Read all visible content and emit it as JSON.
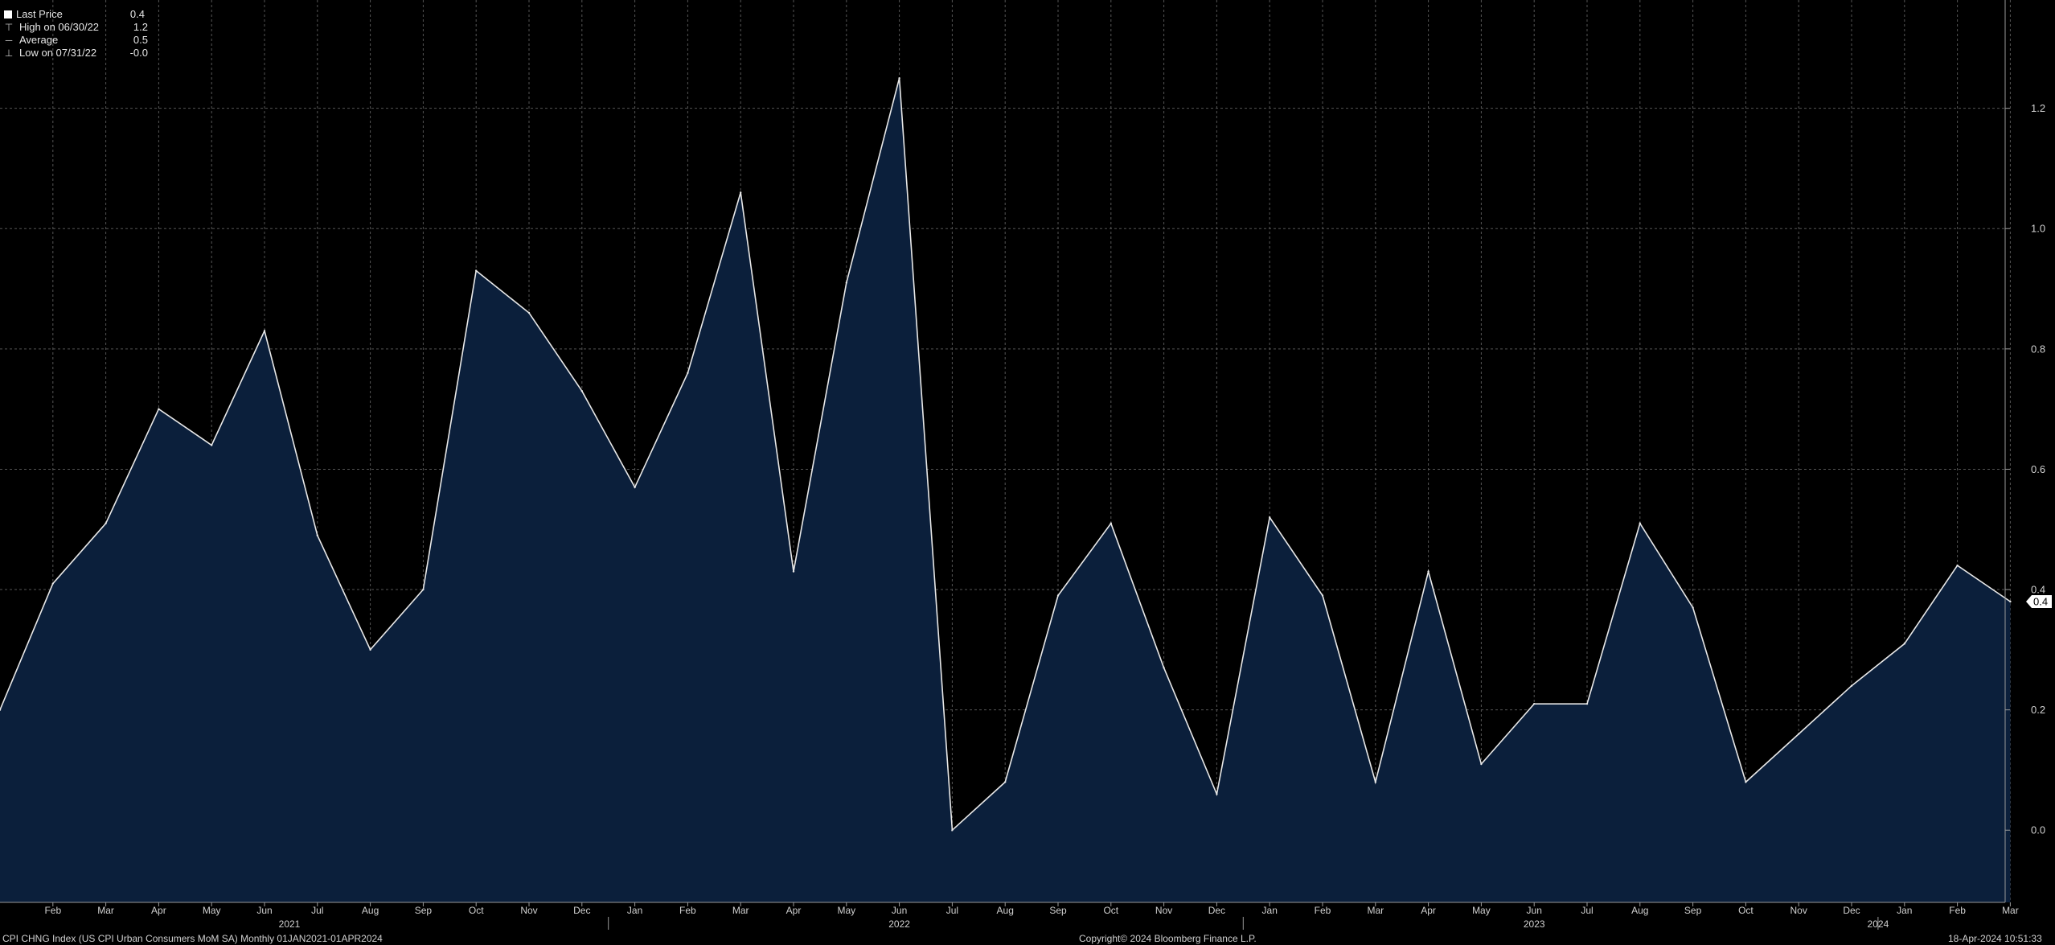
{
  "legend": {
    "items": [
      {
        "label": "Last Price",
        "value": "0.4"
      },
      {
        "label": "High on 06/30/22",
        "value": "1.2"
      },
      {
        "label": "Average",
        "value": "0.5"
      },
      {
        "label": "Low on 07/31/22",
        "value": "-0.0"
      }
    ]
  },
  "footer": {
    "security": "CPI CHNG Index (US CPI Urban Consumers MoM SA)  Monthly 01JAN2021-01APR2024",
    "copyright": "Copyright© 2024 Bloomberg Finance L.P.",
    "timestamp": "18-Apr-2024 10:51:33"
  },
  "last_price_tag": "0.4",
  "colors": {
    "background": "#000000",
    "area_fill": "#0b1f3b",
    "line": "#e8e8e8",
    "grid": "#5a5a5a"
  },
  "chart_data": {
    "type": "area",
    "title": "",
    "xlabel": "",
    "ylabel": "",
    "ylim": [
      -0.12,
      1.38
    ],
    "y_ticks": [
      "0.0",
      "0.2",
      "0.4",
      "0.6",
      "0.8",
      "1.0",
      "1.2"
    ],
    "grid": true,
    "legend_position": "top-left",
    "x": [
      "2021-01",
      "2021-02",
      "2021-03",
      "2021-04",
      "2021-05",
      "2021-06",
      "2021-07",
      "2021-08",
      "2021-09",
      "2021-10",
      "2021-11",
      "2021-12",
      "2022-01",
      "2022-02",
      "2022-03",
      "2022-04",
      "2022-05",
      "2022-06",
      "2022-07",
      "2022-08",
      "2022-09",
      "2022-10",
      "2022-11",
      "2022-12",
      "2023-01",
      "2023-02",
      "2023-03",
      "2023-04",
      "2023-05",
      "2023-06",
      "2023-07",
      "2023-08",
      "2023-09",
      "2023-10",
      "2023-11",
      "2023-12",
      "2024-01",
      "2024-02",
      "2024-03"
    ],
    "series": [
      {
        "values": [
          0.2,
          0.41,
          0.51,
          0.7,
          0.64,
          0.83,
          0.49,
          0.3,
          0.4,
          0.93,
          0.86,
          0.73,
          0.57,
          0.76,
          1.06,
          0.43,
          0.91,
          1.25,
          0.0,
          0.08,
          0.39,
          0.51,
          0.27,
          0.06,
          0.52,
          0.39,
          0.08,
          0.43,
          0.11,
          0.21,
          0.21,
          0.51,
          0.37,
          0.08,
          0.16,
          0.24,
          0.31,
          0.44,
          0.38
        ]
      }
    ],
    "x_tick_labels": [
      "Feb",
      "Mar",
      "Apr",
      "May",
      "Jun",
      "Jul",
      "Aug",
      "Sep",
      "Oct",
      "Nov",
      "Dec",
      "Jan",
      "Feb",
      "Mar",
      "Apr",
      "May",
      "Jun",
      "Jul",
      "Aug",
      "Sep",
      "Oct",
      "Nov",
      "Dec",
      "Jan",
      "Feb",
      "Mar",
      "Apr",
      "May",
      "Jun",
      "Jul",
      "Aug",
      "Sep",
      "Oct",
      "Nov",
      "Dec",
      "Jan",
      "Feb",
      "Mar"
    ],
    "year_labels": [
      {
        "year": "2021",
        "month_index": 5
      },
      {
        "year": "2022",
        "month_index": 17
      },
      {
        "year": "2023",
        "month_index": 29
      },
      {
        "year": "2024",
        "month_index": 35.5
      }
    ]
  }
}
